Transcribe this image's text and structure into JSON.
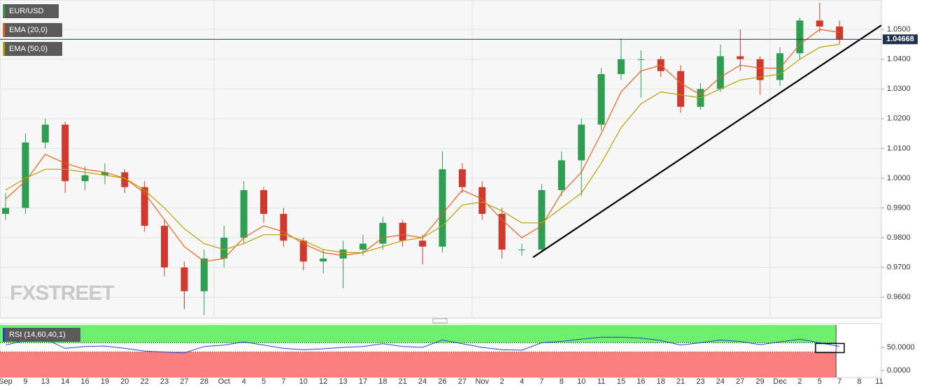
{
  "chart_data": [
    {
      "type": "candlestick",
      "categories": [
        "Sep",
        "9",
        "13",
        "14",
        "16",
        "19",
        "20",
        "22",
        "23",
        "27",
        "28",
        "Oct",
        "4",
        "5",
        "7",
        "10",
        "12",
        "13",
        "17",
        "18",
        "21",
        "24",
        "26",
        "27",
        "Nov",
        "2",
        "4",
        "7",
        "8",
        "10",
        "11",
        "15",
        "16",
        "18",
        "21",
        "23",
        "24",
        "27",
        "29",
        "Dec",
        "2",
        "5",
        "7",
        "8",
        "11"
      ],
      "series": [
        {
          "name": "EUR/USD",
          "up_color": "#2e9e52",
          "down_color": "#cf3a2f",
          "open": [
            0.988,
            0.99,
            1.012,
            1.018,
            0.999,
            1.001,
            1.002,
            0.997,
            0.984,
            0.97,
            0.962,
            0.973,
            0.98,
            0.996,
            0.988,
            0.979,
            0.972,
            0.973,
            0.976,
            0.978,
            0.985,
            0.979,
            0.977,
            1.003,
            0.997,
            0.988,
            0.976,
            0.976,
            0.996,
            1.006,
            1.018,
            1.035,
            1.04,
            1.04,
            1.036,
            1.024,
            1.03,
            1.041,
            1.04,
            1.033,
            1.042,
            1.053,
            1.051,
            null,
            null
          ],
          "high": [
            0.995,
            1.015,
            1.02,
            1.019,
            1.004,
            1.005,
            1.003,
            0.999,
            0.986,
            0.972,
            0.976,
            0.984,
            0.999,
            0.997,
            0.99,
            0.98,
            0.976,
            0.979,
            0.981,
            0.987,
            0.986,
            0.981,
            1.009,
            1.005,
            0.999,
            0.99,
            0.978,
            0.998,
            1.009,
            1.02,
            1.037,
            1.047,
            1.043,
            1.041,
            1.038,
            1.032,
            1.045,
            1.05,
            1.041,
            1.044,
            1.054,
            1.059,
            1.053,
            null,
            null
          ],
          "low": [
            0.986,
            0.988,
            1.01,
            0.995,
            0.996,
            0.998,
            0.995,
            0.982,
            0.967,
            0.956,
            0.954,
            0.97,
            0.978,
            0.985,
            0.977,
            0.969,
            0.968,
            0.963,
            0.974,
            0.976,
            0.977,
            0.971,
            0.975,
            0.995,
            0.986,
            0.973,
            0.974,
            0.975,
            0.994,
            0.994,
            1.016,
            1.033,
            1.027,
            1.034,
            1.022,
            1.023,
            1.029,
            1.036,
            1.028,
            1.031,
            1.04,
            1.049,
            1.045,
            null,
            null
          ],
          "close": [
            0.99,
            1.012,
            1.018,
            0.999,
            1.001,
            1.002,
            0.997,
            0.984,
            0.97,
            0.962,
            0.973,
            0.98,
            0.996,
            0.988,
            0.979,
            0.972,
            0.973,
            0.976,
            0.978,
            0.985,
            0.979,
            0.977,
            1.003,
            0.997,
            0.988,
            0.976,
            0.976,
            0.996,
            1.006,
            1.018,
            1.035,
            1.04,
            1.04,
            1.036,
            1.024,
            1.03,
            1.041,
            1.04,
            1.033,
            1.042,
            1.053,
            1.051,
            1.0467,
            null,
            null
          ]
        },
        {
          "name": "EMA (20,0)",
          "color": "#e8601c",
          "values": [
            0.993,
            0.999,
            1.008,
            1.005,
            1.003,
            1.002,
            1.0,
            0.995,
            0.986,
            0.977,
            0.972,
            0.973,
            0.98,
            0.984,
            0.982,
            0.978,
            0.975,
            0.974,
            0.975,
            0.98,
            0.981,
            0.98,
            0.988,
            0.996,
            0.993,
            0.986,
            0.98,
            0.984,
            0.995,
            1.002,
            1.015,
            1.029,
            1.036,
            1.038,
            1.032,
            1.028,
            1.034,
            1.038,
            1.037,
            1.037,
            1.045,
            1.05,
            1.049,
            null,
            null
          ]
        },
        {
          "name": "EMA (50,0)",
          "color": "#b5a200",
          "values": [
            0.996,
            1.0,
            1.003,
            1.003,
            1.002,
            1.001,
            1.0,
            0.996,
            0.99,
            0.983,
            0.978,
            0.976,
            0.978,
            0.981,
            0.981,
            0.979,
            0.976,
            0.975,
            0.975,
            0.977,
            0.979,
            0.98,
            0.984,
            0.991,
            0.992,
            0.989,
            0.985,
            0.985,
            0.99,
            0.995,
            1.005,
            1.017,
            1.025,
            1.029,
            1.028,
            1.027,
            1.03,
            1.033,
            1.034,
            1.035,
            1.04,
            1.044,
            1.045,
            null,
            null
          ]
        }
      ],
      "ylim": [
        0.953,
        1.0599
      ],
      "yticks": [
        {
          "value": 0.96,
          "label": "0.9600"
        },
        {
          "value": 0.97,
          "label": "0.9700"
        },
        {
          "value": 0.98,
          "label": "0.9800"
        },
        {
          "value": 0.99,
          "label": "0.9900"
        },
        {
          "value": 1.0,
          "label": "1.0000"
        },
        {
          "value": 1.01,
          "label": "1.0100"
        },
        {
          "value": 1.02,
          "label": "1.0200"
        },
        {
          "value": 1.03,
          "label": "1.0300"
        },
        {
          "value": 1.04,
          "label": "1.0400"
        },
        {
          "value": 1.05,
          "label": "1.0500"
        }
      ],
      "last_price": {
        "value": 1.04668,
        "label": "1.04668"
      },
      "trendline": [
        0.9734,
        1.0514
      ],
      "watermark": "FXSTREET",
      "grid": true
    },
    {
      "type": "line",
      "series": [
        {
          "name": "RSI (14,60,40,1)",
          "color": "#2b3fd6",
          "values": [
            55,
            65,
            68,
            48,
            52,
            53,
            48,
            42,
            40,
            38,
            52,
            55,
            62,
            55,
            48,
            45,
            47,
            50,
            52,
            58,
            52,
            50,
            66,
            58,
            50,
            45,
            44,
            60,
            63,
            68,
            72,
            72,
            70,
            65,
            55,
            60,
            66,
            63,
            56,
            62,
            68,
            60,
            52,
            null,
            null
          ]
        }
      ],
      "ylim": [
        -15,
        98.5
      ],
      "yticks": [
        {
          "value": 0,
          "label": "0.0000"
        },
        {
          "value": 50,
          "label": "50.0000"
        }
      ],
      "upper_band": 60,
      "lower_band": 40,
      "upper_color": "#6ef06e",
      "lower_color": "#fb7f7f"
    }
  ]
}
